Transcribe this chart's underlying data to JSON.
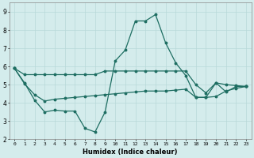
{
  "xlabel": "Humidex (Indice chaleur)",
  "background_color": "#d4ecec",
  "line_color": "#1e6e62",
  "grid_color": "#b8d8d8",
  "xlim": [
    -0.5,
    23.5
  ],
  "ylim": [
    2.0,
    9.5
  ],
  "yticks": [
    2,
    3,
    4,
    5,
    6,
    7,
    8,
    9
  ],
  "xticks": [
    0,
    1,
    2,
    3,
    4,
    5,
    6,
    7,
    8,
    9,
    10,
    11,
    12,
    13,
    14,
    15,
    16,
    17,
    18,
    19,
    20,
    21,
    22,
    23
  ],
  "series1_x": [
    0,
    1,
    2,
    3,
    4,
    5,
    6,
    7,
    8,
    9,
    10,
    11,
    12,
    13,
    14,
    15,
    16,
    17,
    18,
    19,
    20,
    21,
    22,
    23
  ],
  "series1_y": [
    5.9,
    5.55,
    5.55,
    5.55,
    5.55,
    5.55,
    5.55,
    5.55,
    5.55,
    5.75,
    5.75,
    5.75,
    5.75,
    5.75,
    5.75,
    5.75,
    5.75,
    5.75,
    5.0,
    4.55,
    5.1,
    5.0,
    4.95,
    4.9
  ],
  "series2_x": [
    0,
    1,
    2,
    3,
    4,
    5,
    6,
    7,
    8,
    9,
    10,
    11,
    12,
    13,
    14,
    15,
    16,
    17,
    18,
    19,
    20,
    21,
    22,
    23
  ],
  "series2_y": [
    5.9,
    5.1,
    4.15,
    3.5,
    3.6,
    3.55,
    3.55,
    2.6,
    2.4,
    3.5,
    6.3,
    6.9,
    8.5,
    8.5,
    8.85,
    7.3,
    6.2,
    5.5,
    4.3,
    4.3,
    5.1,
    4.6,
    4.9,
    4.9
  ],
  "series3_x": [
    0,
    1,
    2,
    3,
    4,
    5,
    6,
    7,
    8,
    9,
    10,
    11,
    12,
    13,
    14,
    15,
    16,
    17,
    18,
    19,
    20,
    21,
    22,
    23
  ],
  "series3_y": [
    5.9,
    5.05,
    4.45,
    4.1,
    4.2,
    4.25,
    4.3,
    4.35,
    4.4,
    4.45,
    4.5,
    4.55,
    4.6,
    4.65,
    4.65,
    4.65,
    4.7,
    4.75,
    4.3,
    4.3,
    4.35,
    4.65,
    4.8,
    4.9
  ]
}
